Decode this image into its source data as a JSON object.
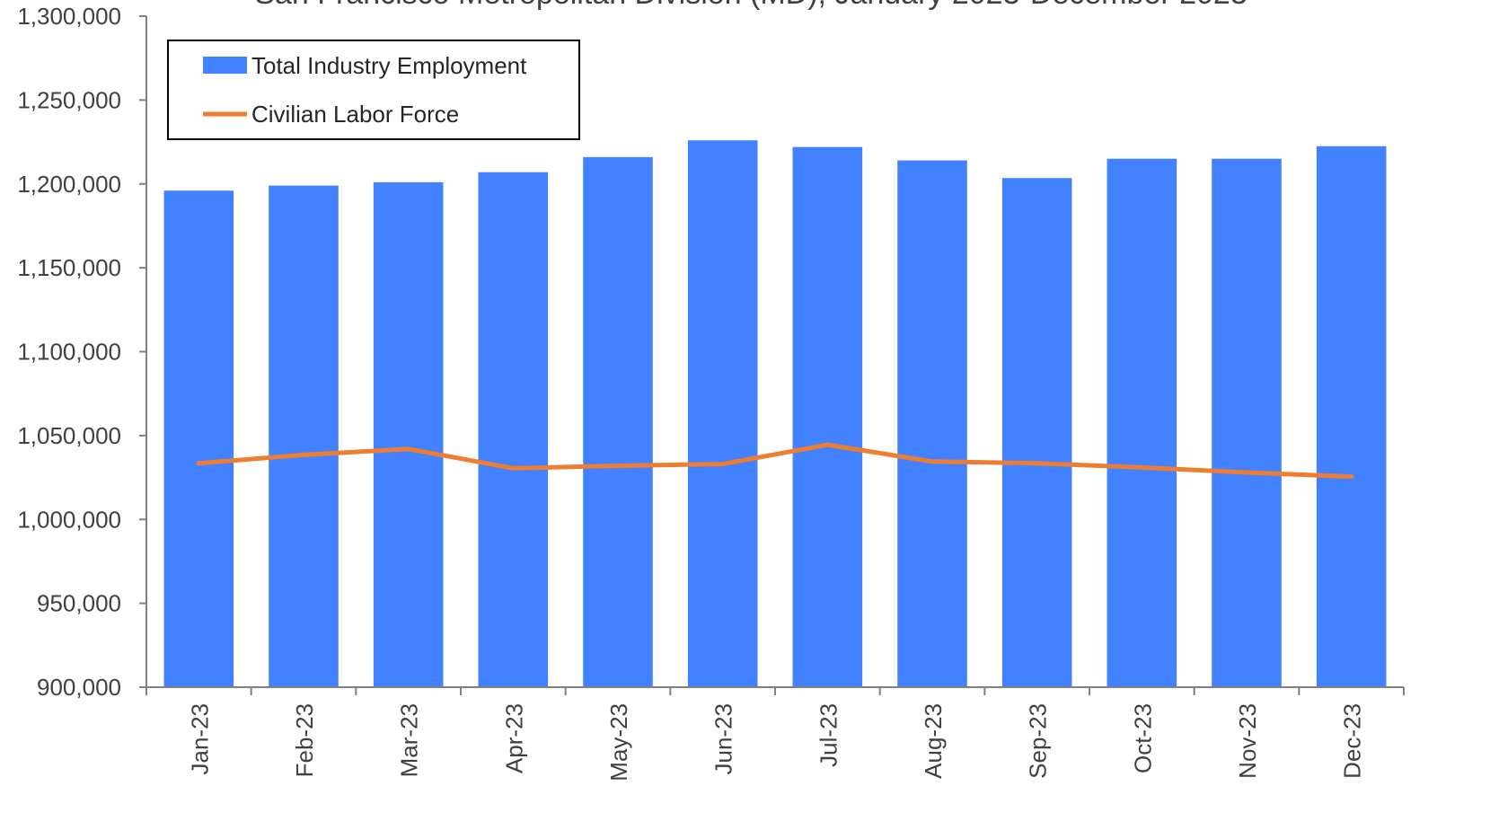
{
  "chart_data": {
    "type": "bar",
    "title": "San Francisco Metropolitan Division (MD), January 2023-December 2023",
    "xlabel": "",
    "ylabel": "",
    "ylim": [
      900000,
      1300000
    ],
    "yticks": [
      900000,
      950000,
      1000000,
      1050000,
      1100000,
      1150000,
      1200000,
      1250000,
      1300000
    ],
    "ytick_labels": [
      "900,000",
      "950,000",
      "1,000,000",
      "1,050,000",
      "1,100,000",
      "1,150,000",
      "1,200,000",
      "1,250,000",
      "1,300,000"
    ],
    "categories": [
      "Jan-23",
      "Feb-23",
      "Mar-23",
      "Apr-23",
      "May-23",
      "Jun-23",
      "Jul-23",
      "Aug-23",
      "Sep-23",
      "Oct-23",
      "Nov-23",
      "Dec-23"
    ],
    "legend_position": "top-left",
    "grid": false,
    "series": [
      {
        "name": "Total Industry Employment",
        "kind": "bar",
        "color": "#4281FF",
        "values": [
          1196000,
          1199000,
          1201000,
          1207000,
          1216000,
          1226000,
          1222000,
          1214000,
          1203500,
          1215000,
          1215000,
          1222500
        ]
      },
      {
        "name": "Civilian Labor Force",
        "kind": "line",
        "color": "#ED7D31",
        "values": [
          1033500,
          1038500,
          1042000,
          1030500,
          1032000,
          1033000,
          1044500,
          1034500,
          1033500,
          1031000,
          1028000,
          1025500
        ]
      }
    ]
  }
}
